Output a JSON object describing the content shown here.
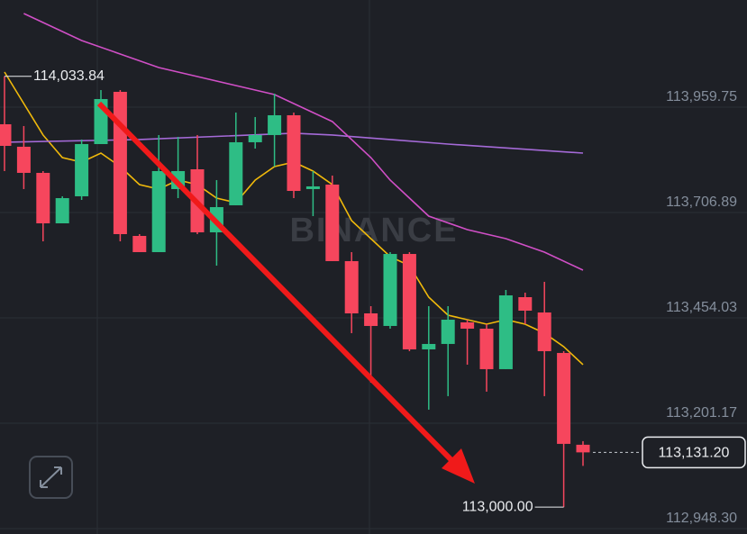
{
  "chart_data": {
    "type": "candlestick",
    "watermark": "BINANCE",
    "ylim": [
      112935.3,
      114216.9
    ],
    "yticks": [
      {
        "value": 113959.75,
        "label": "113,959.75"
      },
      {
        "value": 113706.89,
        "label": "113,706.89"
      },
      {
        "value": 113454.03,
        "label": "113,454.03"
      },
      {
        "value": 113201.17,
        "label": "113,201.17"
      },
      {
        "value": 112948.3,
        "label": "112,948.30"
      }
    ],
    "grid": true,
    "up_color": "#2ebd85",
    "down_color": "#f6465d",
    "open": [
      113918.7,
      113864.7,
      113802.0,
      113680.9,
      113745.8,
      113871.1,
      113996.5,
      113650.7,
      113611.8,
      113763.1,
      113810.6,
      113659.3,
      113724.2,
      113875.5,
      113892.8,
      113940.3,
      113763.1,
      113773.9,
      113590.2,
      113464.8,
      113434.6,
      113607.4,
      113378.4,
      113391.4,
      113443.2,
      113428.1,
      113330.9,
      113503.7,
      113467.0,
      113369.8,
      113149.5
    ],
    "high": [
      114033.84,
      113914.4,
      113806.3,
      113745.8,
      113882.0,
      114000.8,
      114000.8,
      113655.0,
      113892.8,
      113888.4,
      113892.8,
      113784.7,
      113946.8,
      113936.0,
      113992.2,
      113946.8,
      113806.3,
      113795.5,
      113611.8,
      113482.1,
      113611.8,
      113611.8,
      113482.1,
      113482.1,
      113449.7,
      113438.9,
      113521.0,
      113514.5,
      113540.5,
      113374.1,
      113158.1
    ],
    "low": [
      113806.3,
      113763.1,
      113637.7,
      113680.9,
      113737.1,
      113871.1,
      113637.7,
      113611.8,
      113611.8,
      113741.4,
      113655.0,
      113579.4,
      113724.2,
      113860.3,
      113817.1,
      113741.4,
      113698.2,
      113590.2,
      113417.3,
      113298.5,
      113428.1,
      113374.1,
      113233.7,
      113266.1,
      113341.7,
      113276.9,
      113330.9,
      113438.9,
      113266.1,
      113000.0,
      113098.8
    ],
    "close": [
      113866.8,
      113802.0,
      113680.9,
      113741.4,
      113871.1,
      113979.2,
      113655.0,
      113611.8,
      113806.3,
      113806.3,
      113659.3,
      113719.8,
      113875.5,
      113892.8,
      113940.3,
      113758.7,
      113769.6,
      113590.2,
      113464.8,
      113434.6,
      113607.4,
      113378.4,
      113391.4,
      113449.7,
      113428.1,
      113330.9,
      113508.0,
      113471.3,
      113374.1,
      113151.6,
      113131.2
    ],
    "series": [
      {
        "color": "#f0b90b",
        "x": [
          0,
          1,
          2,
          3,
          4,
          5,
          6,
          7,
          8,
          9,
          10,
          11,
          12,
          13,
          14,
          15,
          16,
          17,
          18,
          19,
          20,
          21,
          22,
          23,
          24,
          25,
          26,
          27,
          28,
          29,
          30
        ],
        "values": [
          114044.0,
          113968.4,
          113892.8,
          113838.7,
          113827.9,
          113849.5,
          113817.1,
          113773.9,
          113763.1,
          113784.7,
          113773.9,
          113741.4,
          113730.7,
          113784.7,
          113817.1,
          113827.9,
          113806.3,
          113773.9,
          113687.5,
          113644.2,
          113601.0,
          113579.4,
          113503.7,
          113460.5,
          113449.7,
          113438.9,
          113449.7,
          113438.9,
          113417.3,
          113384.9,
          113341.7
        ]
      },
      {
        "color": "#a56ad8",
        "x": [
          0,
          7,
          15,
          17,
          20,
          23,
          30
        ],
        "values": [
          113875.5,
          113882.0,
          113897.1,
          113892.8,
          113882.0,
          113871.1,
          113849.5
        ]
      },
      {
        "color": "#d04fc6",
        "x": [
          1,
          4,
          6,
          8,
          10,
          12,
          14,
          16,
          17,
          18,
          19,
          20,
          21,
          22,
          24,
          26,
          28,
          30
        ],
        "values": [
          114184.5,
          114119.7,
          114087.3,
          114054.8,
          114033.2,
          114011.6,
          113990.0,
          113946.8,
          113925.2,
          113882.0,
          113838.7,
          113784.7,
          113741.4,
          113698.2,
          113665.8,
          113644.2,
          113611.8,
          113568.6
        ]
      }
    ],
    "annotations": [
      {
        "index": 0,
        "value": 114033.84,
        "label": "114,033.84"
      },
      {
        "index": 29,
        "value": 113000.0,
        "label": "113,000.00"
      }
    ],
    "last_price": {
      "value": 113131.2,
      "label": "113,131.20"
    }
  }
}
